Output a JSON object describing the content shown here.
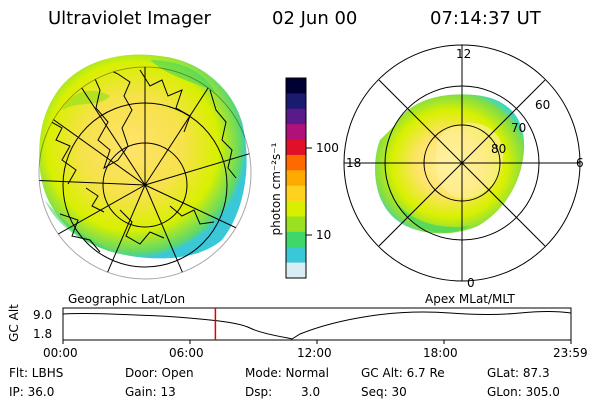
{
  "header": {
    "title": "Ultraviolet Imager",
    "date": "02 Jun 00",
    "time": "07:14:37 UT"
  },
  "panels": {
    "left_label": "Geographic Lat/Lon",
    "right_label": "Apex MLat/MLT"
  },
  "colorbar": {
    "unit_label": "photon cm⁻²s⁻¹",
    "ticks": [
      "100",
      "10"
    ],
    "colors": [
      "#000033",
      "#1a1a6e",
      "#5a1a8a",
      "#b0107a",
      "#e0102a",
      "#ff6a00",
      "#ffaa00",
      "#ffd21f",
      "#d8f000",
      "#9ae020",
      "#3fd66a",
      "#3ac8d8",
      "#d8eef4"
    ]
  },
  "polar_plot": {
    "mlt_labels": {
      "top": "12",
      "bottom": "0",
      "left": "18",
      "right": "6"
    },
    "lat_labels": [
      "60",
      "70",
      "80"
    ]
  },
  "timeline": {
    "ylabel": "GC Alt",
    "y_ticks": [
      "9.0",
      "1.8"
    ],
    "x_ticks": [
      "00:00",
      "06:00",
      "12:00",
      "18:00",
      "23:59"
    ],
    "current_time_fraction": 0.3
  },
  "info": {
    "filter": "Flt: LBHS",
    "door": "Door: Open",
    "mode": "Mode: Normal",
    "gc_alt": "GC Alt: 6.7 Re",
    "glat": "GLat:  87.3",
    "ip": "IP: 36.0",
    "gain": "Gain: 13",
    "dsp_label": "Dsp:",
    "dsp_value": "3.0",
    "seq": "Seq: 30",
    "glon": "GLon: 305.0"
  }
}
